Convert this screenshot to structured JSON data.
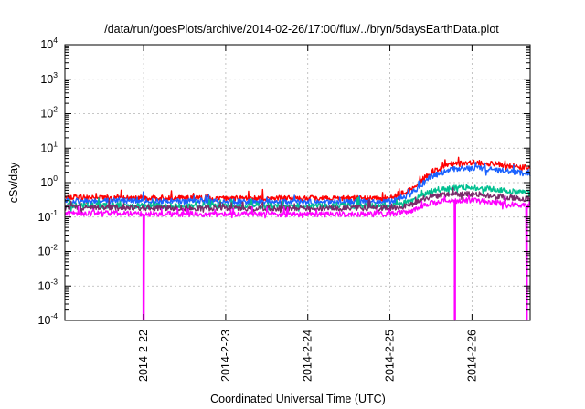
{
  "chart_data": {
    "type": "line",
    "title": "/data/run/goesPlots/archive/2014-02-26/17:00/flux/../bryn/5daysEarthData.plot",
    "xlabel": "Coordinated Universal Time (UTC)",
    "ylabel": "cSv/day",
    "yscale": "log",
    "ylim": [
      0.0001,
      10000
    ],
    "xlim": [
      "2014-02-21T01:00",
      "2014-02-26T17:00"
    ],
    "grid": true,
    "legend": "none",
    "x_ticks": [
      "2014-2-22",
      "2014-2-23",
      "2014-2-24",
      "2014-2-25",
      "2014-2-26"
    ],
    "y_ticks": [
      {
        "base": "10",
        "exp": "-4"
      },
      {
        "base": "10",
        "exp": "-3"
      },
      {
        "base": "10",
        "exp": "-2"
      },
      {
        "base": "10",
        "exp": "-1"
      },
      {
        "base": "10",
        "exp": "0"
      },
      {
        "base": "10",
        "exp": "1"
      },
      {
        "base": "10",
        "exp": "2"
      },
      {
        "base": "10",
        "exp": "3"
      },
      {
        "base": "10",
        "exp": "4"
      }
    ],
    "series": [
      {
        "color": "#ff0000",
        "x": [
          "2014-02-21T01:00",
          "2014-02-22T00:00",
          "2014-02-23T00:00",
          "2014-02-24T00:00",
          "2014-02-25T00:00",
          "2014-02-25T06:00",
          "2014-02-25T12:00",
          "2014-02-25T18:00",
          "2014-02-26T00:00",
          "2014-02-26T06:00",
          "2014-02-26T12:00",
          "2014-02-26T17:00"
        ],
        "y": [
          0.38,
          0.36,
          0.35,
          0.35,
          0.35,
          0.6,
          2.0,
          3.5,
          3.8,
          3.6,
          3.0,
          2.6
        ]
      },
      {
        "color": "#1a62ff",
        "x": [
          "2014-02-21T01:00",
          "2014-02-22T00:00",
          "2014-02-23T00:00",
          "2014-02-24T00:00",
          "2014-02-25T00:00",
          "2014-02-25T06:00",
          "2014-02-25T12:00",
          "2014-02-25T18:00",
          "2014-02-26T00:00",
          "2014-02-26T06:00",
          "2014-02-26T12:00",
          "2014-02-26T17:00"
        ],
        "y": [
          0.3,
          0.29,
          0.28,
          0.28,
          0.28,
          0.45,
          1.5,
          2.4,
          2.6,
          2.4,
          2.0,
          1.8
        ]
      },
      {
        "color": "#00c090",
        "x": [
          "2014-02-21T01:00",
          "2014-02-22T00:00",
          "2014-02-23T00:00",
          "2014-02-24T00:00",
          "2014-02-25T00:00",
          "2014-02-25T06:00",
          "2014-02-25T12:00",
          "2014-02-25T18:00",
          "2014-02-26T00:00",
          "2014-02-26T06:00",
          "2014-02-26T12:00",
          "2014-02-26T17:00"
        ],
        "y": [
          0.22,
          0.21,
          0.21,
          0.21,
          0.21,
          0.28,
          0.55,
          0.7,
          0.72,
          0.65,
          0.55,
          0.5
        ]
      },
      {
        "color": "#7a2a6a",
        "x": [
          "2014-02-21T01:00",
          "2014-02-22T00:00",
          "2014-02-23T00:00",
          "2014-02-24T00:00",
          "2014-02-25T00:00",
          "2014-02-25T06:00",
          "2014-02-25T12:00",
          "2014-02-25T18:00",
          "2014-02-26T00:00",
          "2014-02-26T06:00",
          "2014-02-26T12:00",
          "2014-02-26T17:00"
        ],
        "y": [
          0.19,
          0.185,
          0.18,
          0.18,
          0.18,
          0.22,
          0.38,
          0.46,
          0.47,
          0.42,
          0.36,
          0.33
        ]
      },
      {
        "color": "#ff00ff",
        "x": [
          "2014-02-21T01:00",
          "2014-02-22T00:00",
          "2014-02-23T00:00",
          "2014-02-24T00:00",
          "2014-02-25T00:00",
          "2014-02-25T06:00",
          "2014-02-25T12:00",
          "2014-02-25T18:00",
          "2014-02-26T00:00",
          "2014-02-26T06:00",
          "2014-02-26T12:00",
          "2014-02-26T17:00"
        ],
        "y": [
          0.13,
          0.125,
          0.12,
          0.12,
          0.12,
          0.15,
          0.25,
          0.3,
          0.3,
          0.27,
          0.23,
          0.2
        ],
        "dropouts": [
          "2014-02-22T00:00",
          "2014-02-25T19:00",
          "2014-02-26T16:00"
        ]
      }
    ]
  }
}
